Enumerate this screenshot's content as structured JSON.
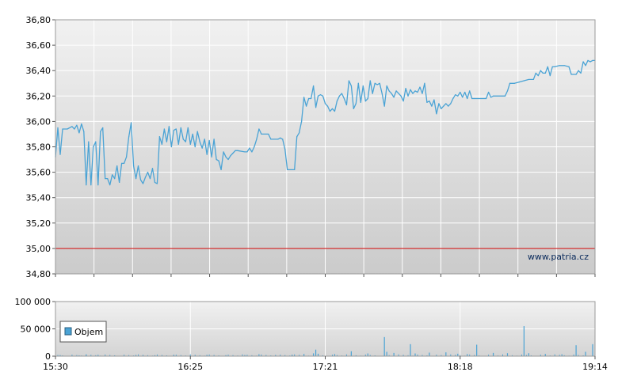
{
  "chart_data": [
    {
      "type": "line",
      "series": [
        {
          "points": [
            [
              "15:30",
              35.72
            ],
            [
              "15:31",
              35.95
            ],
            [
              "15:32",
              35.74
            ],
            [
              "15:33",
              35.94
            ],
            [
              "15:35",
              35.94
            ],
            [
              "15:37",
              35.96
            ],
            [
              "15:38",
              35.94
            ],
            [
              "15:39",
              35.97
            ],
            [
              "15:40",
              35.91
            ],
            [
              "15:41",
              35.98
            ],
            [
              "15:42",
              35.92
            ],
            [
              "15:43",
              35.5
            ],
            [
              "15:44",
              35.84
            ],
            [
              "15:45",
              35.5
            ],
            [
              "15:46",
              35.8
            ],
            [
              "15:47",
              35.84
            ],
            [
              "15:48",
              35.5
            ],
            [
              "15:49",
              35.92
            ],
            [
              "15:50",
              35.95
            ],
            [
              "15:51",
              35.55
            ],
            [
              "15:52",
              35.55
            ],
            [
              "15:53",
              35.5
            ],
            [
              "15:54",
              35.58
            ],
            [
              "15:55",
              35.55
            ],
            [
              "15:56",
              35.65
            ],
            [
              "15:57",
              35.52
            ],
            [
              "15:58",
              35.67
            ],
            [
              "15:59",
              35.67
            ],
            [
              "16:00",
              35.72
            ],
            [
              "16:01",
              35.88
            ],
            [
              "16:02",
              35.99
            ],
            [
              "16:03",
              35.65
            ],
            [
              "16:04",
              35.55
            ],
            [
              "16:05",
              35.65
            ],
            [
              "16:06",
              35.54
            ],
            [
              "16:07",
              35.51
            ],
            [
              "16:08",
              35.56
            ],
            [
              "16:09",
              35.6
            ],
            [
              "16:10",
              35.55
            ],
            [
              "16:11",
              35.63
            ],
            [
              "16:12",
              35.52
            ],
            [
              "16:13",
              35.51
            ],
            [
              "16:14",
              35.88
            ],
            [
              "16:15",
              35.82
            ],
            [
              "16:16",
              35.94
            ],
            [
              "16:17",
              35.84
            ],
            [
              "16:18",
              35.96
            ],
            [
              "16:19",
              35.8
            ],
            [
              "16:20",
              35.93
            ],
            [
              "16:21",
              35.94
            ],
            [
              "16:22",
              35.82
            ],
            [
              "16:23",
              35.95
            ],
            [
              "16:24",
              35.86
            ],
            [
              "16:25",
              35.84
            ],
            [
              "16:26",
              35.95
            ],
            [
              "16:27",
              35.82
            ],
            [
              "16:28",
              35.9
            ],
            [
              "16:29",
              35.8
            ],
            [
              "16:30",
              35.92
            ],
            [
              "16:31",
              35.84
            ],
            [
              "16:32",
              35.79
            ],
            [
              "16:33",
              35.86
            ],
            [
              "16:34",
              35.74
            ],
            [
              "16:35",
              35.85
            ],
            [
              "16:36",
              35.72
            ],
            [
              "16:37",
              35.86
            ],
            [
              "16:38",
              35.7
            ],
            [
              "16:39",
              35.69
            ],
            [
              "16:40",
              35.62
            ],
            [
              "16:41",
              35.76
            ],
            [
              "16:42",
              35.72
            ],
            [
              "16:43",
              35.7
            ],
            [
              "16:44",
              35.73
            ],
            [
              "16:45",
              35.75
            ],
            [
              "16:46",
              35.77
            ],
            [
              "16:47",
              35.77
            ],
            [
              "16:50",
              35.76
            ],
            [
              "16:51",
              35.76
            ],
            [
              "16:52",
              35.79
            ],
            [
              "16:53",
              35.76
            ],
            [
              "16:54",
              35.8
            ],
            [
              "16:55",
              35.86
            ],
            [
              "16:56",
              35.94
            ],
            [
              "16:57",
              35.9
            ],
            [
              "17:00",
              35.9
            ],
            [
              "17:01",
              35.86
            ],
            [
              "17:04",
              35.86
            ],
            [
              "17:05",
              35.87
            ],
            [
              "17:06",
              35.86
            ],
            [
              "17:07",
              35.78
            ],
            [
              "17:08",
              35.62
            ],
            [
              "17:11",
              35.62
            ],
            [
              "17:12",
              35.88
            ],
            [
              "17:13",
              35.91
            ],
            [
              "17:14",
              36.0
            ],
            [
              "17:15",
              36.19
            ],
            [
              "17:16",
              36.12
            ],
            [
              "17:17",
              36.18
            ],
            [
              "17:18",
              36.18
            ],
            [
              "17:19",
              36.28
            ],
            [
              "17:20",
              36.11
            ],
            [
              "17:21",
              36.2
            ],
            [
              "17:22",
              36.21
            ],
            [
              "17:23",
              36.2
            ],
            [
              "17:24",
              36.14
            ],
            [
              "17:25",
              36.12
            ],
            [
              "17:26",
              36.08
            ],
            [
              "17:27",
              36.1
            ],
            [
              "17:28",
              36.08
            ],
            [
              "17:29",
              36.16
            ],
            [
              "17:30",
              36.2
            ],
            [
              "17:31",
              36.22
            ],
            [
              "17:32",
              36.18
            ],
            [
              "17:33",
              36.13
            ],
            [
              "17:34",
              36.32
            ],
            [
              "17:35",
              36.28
            ],
            [
              "17:36",
              36.1
            ],
            [
              "17:37",
              36.14
            ],
            [
              "17:38",
              36.3
            ],
            [
              "17:39",
              36.15
            ],
            [
              "17:40",
              36.28
            ],
            [
              "17:41",
              36.16
            ],
            [
              "17:42",
              36.18
            ],
            [
              "17:43",
              36.32
            ],
            [
              "17:44",
              36.22
            ],
            [
              "17:45",
              36.3
            ],
            [
              "17:46",
              36.29
            ],
            [
              "17:47",
              36.3
            ],
            [
              "17:48",
              36.22
            ],
            [
              "17:49",
              36.12
            ],
            [
              "17:50",
              36.28
            ],
            [
              "17:51",
              36.24
            ],
            [
              "17:52",
              36.22
            ],
            [
              "17:53",
              36.19
            ],
            [
              "17:54",
              36.24
            ],
            [
              "17:55",
              36.22
            ],
            [
              "17:56",
              36.2
            ],
            [
              "17:57",
              36.16
            ],
            [
              "17:58",
              36.26
            ],
            [
              "17:59",
              36.2
            ],
            [
              "18:00",
              36.25
            ],
            [
              "18:01",
              36.22
            ],
            [
              "18:02",
              36.24
            ],
            [
              "18:03",
              36.23
            ],
            [
              "18:04",
              36.27
            ],
            [
              "18:05",
              36.22
            ],
            [
              "18:06",
              36.3
            ],
            [
              "18:07",
              36.15
            ],
            [
              "18:08",
              36.16
            ],
            [
              "18:09",
              36.12
            ],
            [
              "18:10",
              36.17
            ],
            [
              "18:11",
              36.06
            ],
            [
              "18:12",
              36.14
            ],
            [
              "18:13",
              36.1
            ],
            [
              "18:14",
              36.12
            ],
            [
              "18:15",
              36.14
            ],
            [
              "18:16",
              36.12
            ],
            [
              "18:17",
              36.14
            ],
            [
              "18:18",
              36.18
            ],
            [
              "18:19",
              36.21
            ],
            [
              "18:20",
              36.2
            ],
            [
              "18:21",
              36.23
            ],
            [
              "18:22",
              36.19
            ],
            [
              "18:23",
              36.23
            ],
            [
              "18:24",
              36.18
            ],
            [
              "18:25",
              36.24
            ],
            [
              "18:26",
              36.18
            ],
            [
              "18:27",
              36.18
            ],
            [
              "18:32",
              36.18
            ],
            [
              "18:33",
              36.23
            ],
            [
              "18:34",
              36.19
            ],
            [
              "18:35",
              36.2
            ],
            [
              "18:40",
              36.2
            ],
            [
              "18:41",
              36.24
            ],
            [
              "18:42",
              36.3
            ],
            [
              "18:44",
              36.3
            ],
            [
              "18:46",
              36.31
            ],
            [
              "18:48",
              36.32
            ],
            [
              "18:50",
              36.33
            ],
            [
              "18:52",
              36.33
            ],
            [
              "18:53",
              36.38
            ],
            [
              "18:54",
              36.36
            ],
            [
              "18:55",
              36.4
            ],
            [
              "18:56",
              36.38
            ],
            [
              "18:57",
              36.38
            ],
            [
              "18:58",
              36.43
            ],
            [
              "18:59",
              36.36
            ],
            [
              "19:00",
              36.43
            ],
            [
              "19:01",
              36.43
            ],
            [
              "19:03",
              36.44
            ],
            [
              "19:05",
              36.44
            ],
            [
              "19:07",
              36.43
            ],
            [
              "19:08",
              36.37
            ],
            [
              "19:10",
              36.37
            ],
            [
              "19:11",
              36.4
            ],
            [
              "19:12",
              36.38
            ],
            [
              "19:13",
              36.47
            ],
            [
              "19:14",
              36.44
            ],
            [
              "19:15",
              36.48
            ],
            [
              "19:16",
              36.47
            ],
            [
              "19:17",
              36.48
            ],
            [
              "19:18",
              36.48
            ]
          ]
        }
      ],
      "reference_line": 35.0,
      "ylim": [
        34.8,
        36.8
      ],
      "yticks": [
        "34,80",
        "35,00",
        "35,20",
        "35,40",
        "35,60",
        "35,80",
        "36,00",
        "36,20",
        "36,40",
        "36,60",
        "36,80"
      ],
      "watermark": "www.patria.cz",
      "grid": true,
      "colors": {
        "line": "#4aa3d5",
        "reference": "#cc0000",
        "grid": "#ffffff",
        "plot_bg_top": "#f0f0f0",
        "plot_bg_bottom": "#cdcdcd"
      }
    },
    {
      "type": "bar",
      "legend": {
        "label": "Objem",
        "placement": "top-left"
      },
      "ylim": [
        0,
        100000
      ],
      "yticks": [
        "0",
        "50 000",
        "100 000"
      ],
      "xticks": [
        "15:30",
        "16:25",
        "17:21",
        "18:18",
        "19:14"
      ],
      "grid": true,
      "bars": [
        [
          "15:32",
          2000
        ],
        [
          "15:40",
          1500
        ],
        [
          "15:43",
          3000
        ],
        [
          "15:48",
          2500
        ],
        [
          "15:55",
          1200
        ],
        [
          "16:04",
          2200
        ],
        [
          "16:12",
          1800
        ],
        [
          "16:20",
          2600
        ],
        [
          "16:27",
          1500
        ],
        [
          "16:34",
          2400
        ],
        [
          "16:42",
          1900
        ],
        [
          "16:50",
          2100
        ],
        [
          "16:56",
          3500
        ],
        [
          "17:03",
          2200
        ],
        [
          "17:10",
          2800
        ],
        [
          "17:15",
          4000
        ],
        [
          "17:19",
          5200
        ],
        [
          "17:20",
          12000
        ],
        [
          "17:21",
          4500
        ],
        [
          "17:28",
          3800
        ],
        [
          "17:35",
          9000
        ],
        [
          "17:42",
          5000
        ],
        [
          "17:49",
          35000
        ],
        [
          "17:50",
          8000
        ],
        [
          "17:53",
          6000
        ],
        [
          "18:00",
          22000
        ],
        [
          "18:02",
          5000
        ],
        [
          "18:08",
          6500
        ],
        [
          "18:15",
          7000
        ],
        [
          "18:20",
          4500
        ],
        [
          "18:24",
          3800
        ],
        [
          "18:28",
          21000
        ],
        [
          "18:35",
          6000
        ],
        [
          "18:41",
          5500
        ],
        [
          "18:48",
          55000
        ],
        [
          "18:50",
          5500
        ],
        [
          "18:57",
          4000
        ],
        [
          "19:04",
          3500
        ],
        [
          "19:10",
          20000
        ],
        [
          "19:14",
          8000
        ],
        [
          "19:17",
          22000
        ]
      ],
      "volume_profile": {
        "base_level": 2500,
        "bar_color": "#4aa3d5"
      }
    }
  ]
}
